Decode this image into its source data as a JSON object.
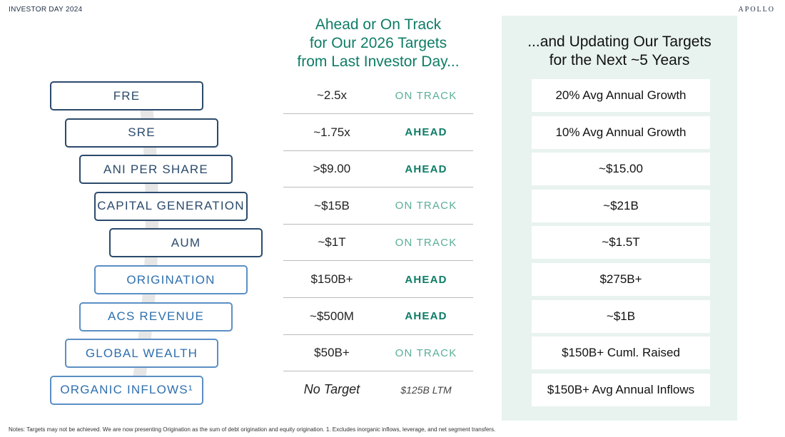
{
  "header": {
    "left": "INVESTOR DAY 2024",
    "right": "APOLLO"
  },
  "middle_title": [
    "Ahead or On Track",
    "for Our 2026 Targets",
    "from Last Investor Day..."
  ],
  "right_title": [
    "...and Updating Our Targets",
    "for the Next ~5 Years"
  ],
  "rows": [
    {
      "label": "FRE",
      "target": "~2.5x",
      "status": "ON TRACK",
      "new_target": "20% Avg Annual Growth"
    },
    {
      "label": "SRE",
      "target": "~1.75x",
      "status": "AHEAD",
      "new_target": "10% Avg Annual Growth"
    },
    {
      "label": "ANI PER SHARE",
      "target": ">$9.00",
      "status": "AHEAD",
      "new_target": "~$15.00"
    },
    {
      "label": "CAPITAL GENERATION",
      "target": "~$15B",
      "status": "ON TRACK",
      "new_target": "~$21B"
    },
    {
      "label": "AUM",
      "target": "~$1T",
      "status": "ON TRACK",
      "new_target": "~$1.5T"
    },
    {
      "label": "ORIGINATION",
      "target": "$150B+",
      "status": "AHEAD",
      "new_target": "$275B+"
    },
    {
      "label": "ACS REVENUE",
      "target": "~$500M",
      "status": "AHEAD",
      "new_target": "~$1B"
    },
    {
      "label": "GLOBAL WEALTH",
      "target": "$50B+",
      "status": "ON TRACK",
      "new_target": "$150B+ Cuml. Raised"
    },
    {
      "label": "ORGANIC INFLOWS¹",
      "target": "No Target",
      "status": "$125B LTM",
      "new_target": "$150B+ Avg Annual Inflows"
    }
  ],
  "notes": "Notes: Targets may not be achieved. We are now presenting Origination as the sum of debt origination and equity origination. 1. Excludes inorganic inflows, leverage, and net segment transfers."
}
